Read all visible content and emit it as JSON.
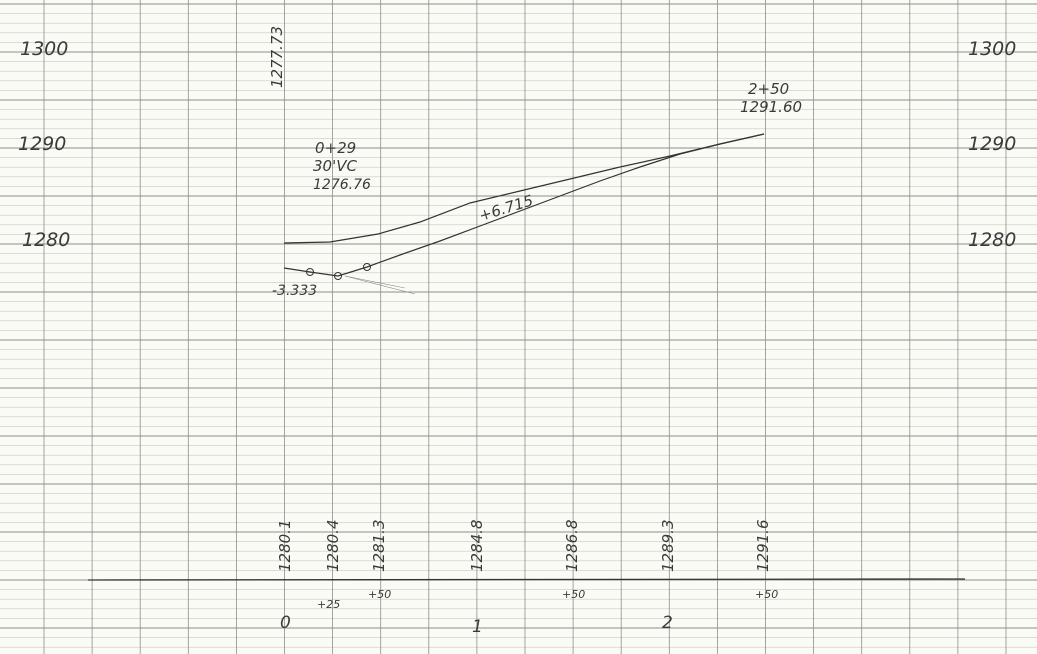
{
  "elevation_labels": {
    "e1300": "1300",
    "e1290": "1290",
    "e1280": "1280"
  },
  "top_vertical_label": "1277.73",
  "curve_note": {
    "station": "0+29",
    "length": "30'VC",
    "elevation": "1276.76"
  },
  "end_note": {
    "station": "2+50",
    "elevation": "1291.60"
  },
  "grade_labels": {
    "up": "+6.715",
    "down": "-3.333"
  },
  "ground_elevations": [
    "1280.1",
    "1280.4",
    "1281.3",
    "1284.8",
    "1286.8",
    "1289.3",
    "1291.6"
  ],
  "plus_labels": [
    "+25",
    "+50",
    "+50",
    "+50"
  ],
  "station_numbers": [
    "0",
    "1",
    "2"
  ],
  "colors": {
    "paper": "#fbfbf6",
    "grid": "#c9c9c4",
    "grid_major": "#8e8e8a",
    "ink": "#333333"
  }
}
